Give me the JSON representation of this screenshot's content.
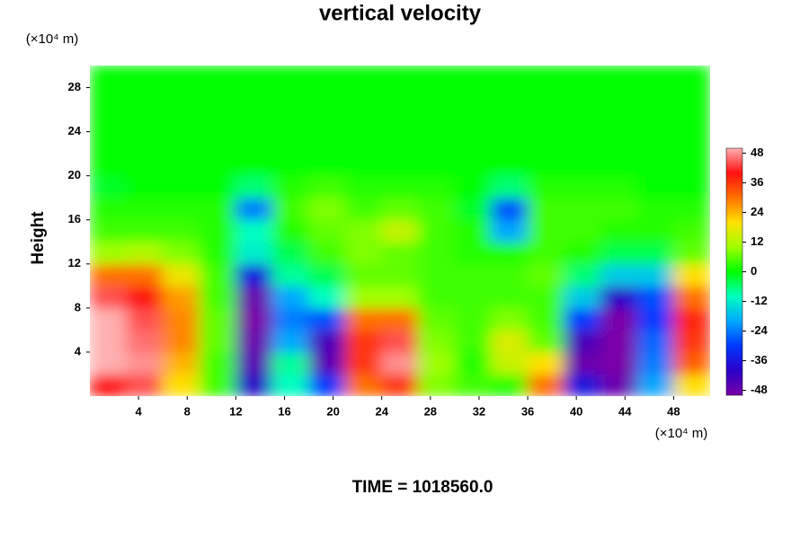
{
  "chart_data": {
    "type": "contour",
    "title": "vertical velocity",
    "ylabel": "Height",
    "y_unit": "(×10⁴ m)",
    "x_unit": "(×10⁴ m)",
    "footer": "TIME = 1018560.0",
    "xlim": [
      0,
      51
    ],
    "ylim": [
      0,
      30
    ],
    "xticks": [
      4,
      8,
      12,
      16,
      20,
      24,
      28,
      32,
      36,
      40,
      44,
      48
    ],
    "yticks": [
      4,
      8,
      12,
      16,
      20,
      24,
      28
    ],
    "clim": [
      -50,
      50
    ],
    "cticks": [
      48,
      36,
      24,
      12,
      0,
      -12,
      -24,
      -36,
      -48
    ],
    "colormap": [
      "#7a00a8",
      "#2a00c8",
      "#0038ff",
      "#00a8ff",
      "#00ffc0",
      "#00ff00",
      "#a0ff00",
      "#ffe000",
      "#ff7000",
      "#ff1010",
      "#ffb0b0"
    ],
    "x": [
      1.5,
      4.5,
      7.5,
      10.5,
      13.5,
      16.5,
      19.5,
      22.5,
      25.5,
      28.5,
      31.5,
      34.5,
      37.5,
      40.5,
      43.5,
      46.5,
      49.5
    ],
    "y": [
      1,
      3,
      5,
      7,
      9,
      11,
      13,
      15,
      17,
      19,
      21,
      23,
      25,
      27,
      29
    ],
    "z": [
      [
        40,
        44,
        20,
        4,
        -40,
        -10,
        -30,
        30,
        36,
        8,
        4,
        2,
        30,
        -36,
        -48,
        -20,
        20
      ],
      [
        50,
        48,
        24,
        4,
        -46,
        -8,
        -46,
        36,
        48,
        10,
        2,
        14,
        20,
        -48,
        -50,
        -24,
        32
      ],
      [
        50,
        46,
        28,
        6,
        -48,
        -20,
        -44,
        36,
        44,
        8,
        4,
        16,
        6,
        -44,
        -50,
        -26,
        36
      ],
      [
        50,
        44,
        28,
        6,
        -50,
        -24,
        -28,
        30,
        30,
        6,
        4,
        8,
        4,
        -30,
        -50,
        -30,
        38
      ],
      [
        44,
        40,
        26,
        4,
        -48,
        -20,
        -10,
        10,
        10,
        4,
        4,
        4,
        4,
        -16,
        -40,
        -28,
        30
      ],
      [
        30,
        30,
        18,
        4,
        -36,
        -8,
        -4,
        6,
        6,
        4,
        4,
        4,
        6,
        -6,
        -16,
        -16,
        20
      ],
      [
        10,
        12,
        8,
        2,
        -12,
        -4,
        4,
        8,
        6,
        4,
        2,
        2,
        4,
        2,
        -4,
        -4,
        6
      ],
      [
        4,
        4,
        4,
        2,
        -10,
        2,
        6,
        8,
        14,
        4,
        2,
        -20,
        4,
        4,
        2,
        2,
        4
      ],
      [
        2,
        2,
        2,
        2,
        -24,
        4,
        8,
        4,
        6,
        4,
        -2,
        -28,
        4,
        4,
        4,
        2,
        2
      ],
      [
        -2,
        0,
        0,
        0,
        -6,
        2,
        4,
        2,
        2,
        2,
        0,
        -6,
        2,
        2,
        2,
        0,
        0
      ],
      [
        0,
        0,
        0,
        0,
        0,
        0,
        0,
        0,
        0,
        0,
        0,
        0,
        0,
        0,
        0,
        0,
        0
      ],
      [
        0,
        0,
        0,
        0,
        0,
        0,
        0,
        0,
        0,
        0,
        0,
        0,
        0,
        0,
        0,
        0,
        0
      ],
      [
        0,
        0,
        0,
        0,
        0,
        0,
        0,
        0,
        0,
        0,
        0,
        0,
        0,
        0,
        0,
        0,
        0
      ],
      [
        0,
        0,
        0,
        0,
        0,
        0,
        0,
        0,
        0,
        0,
        0,
        0,
        0,
        0,
        0,
        0,
        0
      ],
      [
        0,
        0,
        0,
        0,
        0,
        0,
        0,
        0,
        0,
        0,
        0,
        0,
        0,
        0,
        0,
        0,
        0
      ]
    ]
  }
}
